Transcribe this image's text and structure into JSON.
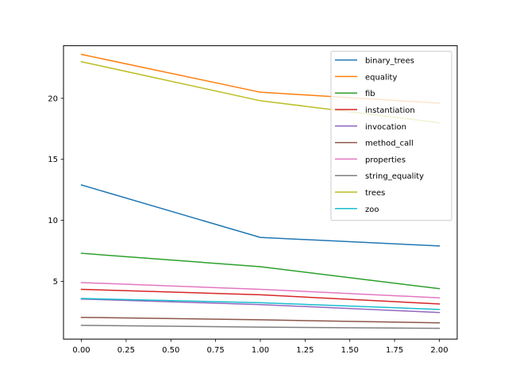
{
  "chart_data": {
    "type": "line",
    "title": "",
    "xlabel": "",
    "ylabel": "",
    "x": [
      0,
      1,
      2
    ],
    "xlim": [
      -0.1,
      2.1
    ],
    "ylim": [
      0.27,
      24.31
    ],
    "xticks": [
      "0.00",
      "0.25",
      "0.50",
      "0.75",
      "1.00",
      "1.25",
      "1.50",
      "1.75",
      "2.00"
    ],
    "yticks": [
      "5",
      "10",
      "15",
      "20"
    ],
    "grid": false,
    "legend": "top-right",
    "series": [
      {
        "name": "binary_trees",
        "color": "#1f77b4",
        "values": [
          12.9,
          8.6,
          7.9
        ]
      },
      {
        "name": "equality",
        "color": "#ff7f0e",
        "values": [
          23.6,
          20.5,
          19.6
        ]
      },
      {
        "name": "fib",
        "color": "#2ca02c",
        "values": [
          7.3,
          6.2,
          4.4
        ]
      },
      {
        "name": "instantiation",
        "color": "#d62728",
        "values": [
          4.35,
          3.9,
          3.15
        ]
      },
      {
        "name": "invocation",
        "color": "#9467bd",
        "values": [
          3.55,
          3.1,
          2.45
        ]
      },
      {
        "name": "method_call",
        "color": "#8c564b",
        "values": [
          2.05,
          1.85,
          1.6
        ]
      },
      {
        "name": "properties",
        "color": "#e377c2",
        "values": [
          4.9,
          4.35,
          3.65
        ]
      },
      {
        "name": "string_equality",
        "color": "#7f7f7f",
        "values": [
          1.4,
          1.25,
          1.15
        ]
      },
      {
        "name": "trees",
        "color": "#bcbd22",
        "values": [
          23.0,
          19.8,
          18.0
        ]
      },
      {
        "name": "zoo",
        "color": "#17becf",
        "values": [
          3.6,
          3.25,
          2.7
        ]
      }
    ]
  }
}
